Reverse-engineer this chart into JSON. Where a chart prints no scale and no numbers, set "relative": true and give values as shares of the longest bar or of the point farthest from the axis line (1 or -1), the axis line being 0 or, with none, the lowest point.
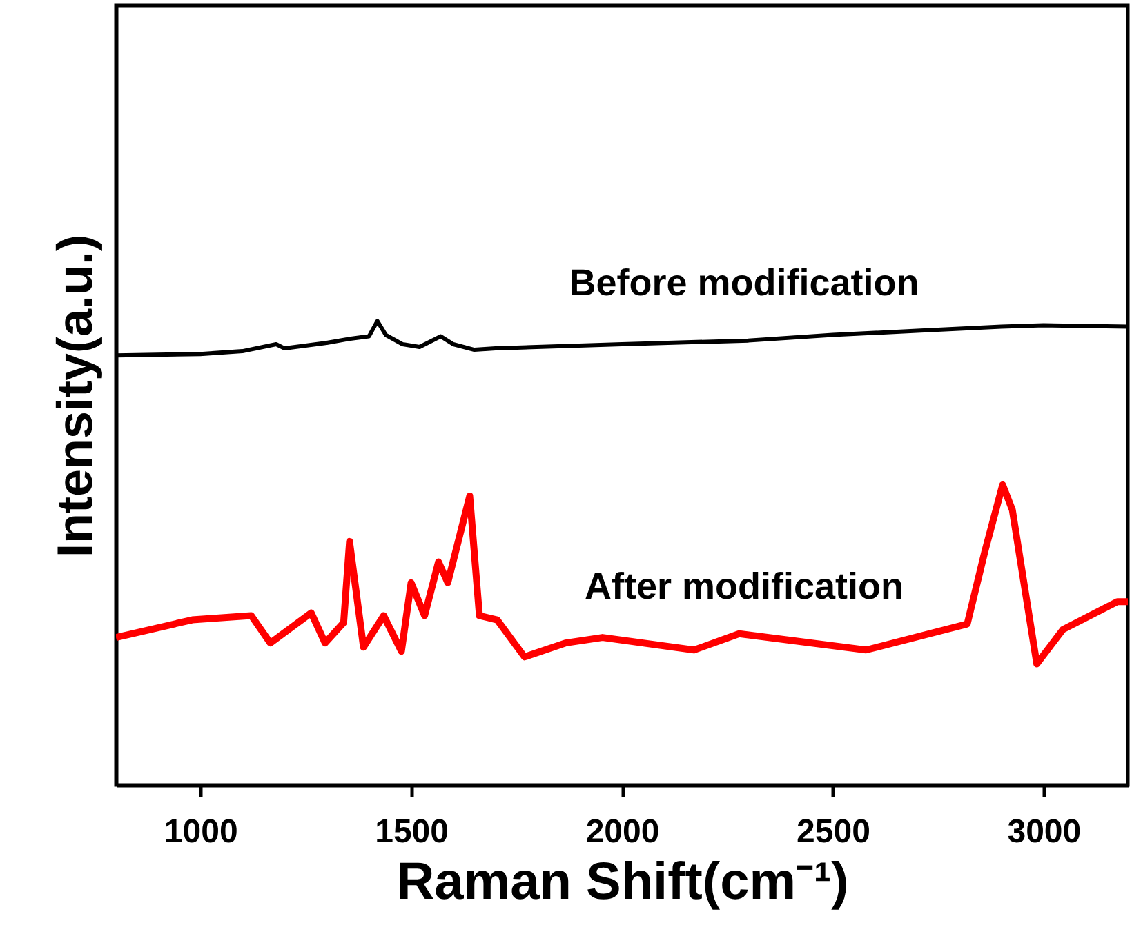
{
  "chart_data": {
    "type": "line",
    "xlabel": "Raman Shift(cm⁻¹)",
    "ylabel": "Intensity(a.u.)",
    "relative": true,
    "xlim": [
      800,
      3200
    ],
    "xticks": [
      1000,
      1500,
      2000,
      2500,
      3000
    ],
    "grid": false,
    "line_style": "solid",
    "marker": "none",
    "series": [
      {
        "name": "Before modification",
        "color": "#000000",
        "x": [
          800,
          1000,
          1100,
          1180,
          1200,
          1300,
          1350,
          1400,
          1420,
          1440,
          1480,
          1520,
          1570,
          1600,
          1650,
          1700,
          2000,
          2300,
          2500,
          2700,
          2900,
          3000,
          3200
        ],
        "values": [
          0.926,
          0.929,
          0.935,
          0.95,
          0.941,
          0.953,
          0.961,
          0.967,
          1,
          0.97,
          0.95,
          0.944,
          0.967,
          0.95,
          0.938,
          0.941,
          0.95,
          0.958,
          0.97,
          0.979,
          0.988,
          0.991,
          0.988
        ]
      },
      {
        "name": "After modification",
        "color": "#ff0000",
        "x": [
          800,
          981,
          1121,
          1166,
          1263,
          1296,
          1340,
          1354,
          1387,
          1435,
          1477,
          1500,
          1532,
          1565,
          1587,
          1639,
          1662,
          1704,
          1769,
          1866,
          1954,
          2171,
          2278,
          2579,
          2819,
          2861,
          2903,
          2926,
          2984,
          3046,
          3175,
          3200
        ],
        "values": [
          0.318,
          0.356,
          0.365,
          0.306,
          0.371,
          0.306,
          0.35,
          0.525,
          0.297,
          0.365,
          0.288,
          0.436,
          0.365,
          0.481,
          0.436,
          0.623,
          0.365,
          0.356,
          0.276,
          0.306,
          0.318,
          0.291,
          0.326,
          0.291,
          0.347,
          0.504,
          0.647,
          0.593,
          0.261,
          0.335,
          0.395,
          0.395
        ]
      }
    ]
  }
}
